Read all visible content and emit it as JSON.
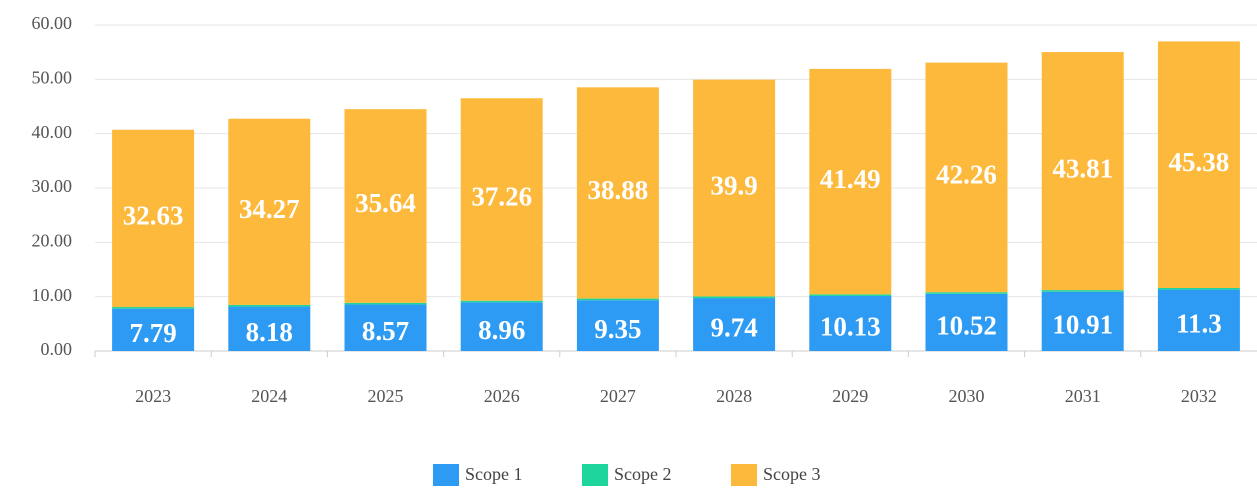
{
  "chart_data": {
    "type": "stacked-bar",
    "categories": [
      "2023",
      "2024",
      "2025",
      "2026",
      "2027",
      "2028",
      "2029",
      "2030",
      "2031",
      "2032"
    ],
    "series": [
      {
        "name": "Scope 1",
        "color": "#2d9bf3",
        "values": [
          7.79,
          8.18,
          8.57,
          8.96,
          9.35,
          9.74,
          10.13,
          10.52,
          10.91,
          11.3
        ]
      },
      {
        "name": "Scope 2",
        "color": "#1ed69b",
        "values": [
          0.3,
          0.3,
          0.3,
          0.3,
          0.3,
          0.3,
          0.3,
          0.3,
          0.3,
          0.3
        ]
      },
      {
        "name": "Scope 3",
        "color": "#fdb93b",
        "values": [
          32.63,
          34.27,
          35.64,
          37.26,
          38.88,
          39.9,
          41.49,
          42.26,
          43.81,
          45.38
        ]
      }
    ],
    "ylim": [
      0,
      60
    ],
    "yticks": [
      {
        "value": 0,
        "label": "0.00"
      },
      {
        "value": 10,
        "label": "10.00"
      },
      {
        "value": 20,
        "label": "20.00"
      },
      {
        "value": 30,
        "label": "30.00"
      },
      {
        "value": 40,
        "label": "40.00"
      },
      {
        "value": 50,
        "label": "50.00"
      },
      {
        "value": 60,
        "label": "60.00"
      }
    ],
    "grid": true,
    "legend": "bottom"
  }
}
